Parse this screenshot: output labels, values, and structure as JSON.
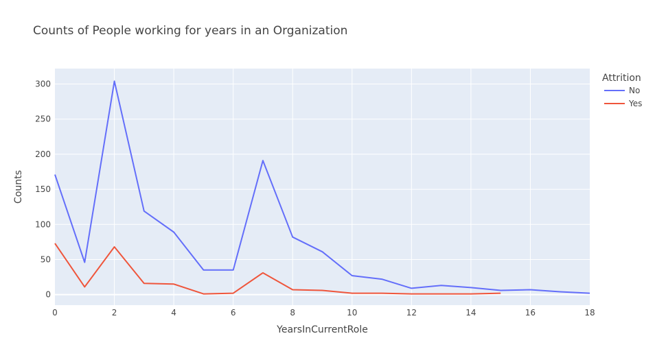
{
  "chart_data": {
    "type": "line",
    "title": "Counts of People working for years in an Organization",
    "xlabel": "YearsInCurrentRole",
    "ylabel": "Counts",
    "xlim": [
      0,
      18
    ],
    "ylim": [
      -15,
      322
    ],
    "xticks": [
      0,
      2,
      4,
      6,
      8,
      10,
      12,
      14,
      16,
      18
    ],
    "yticks": [
      0,
      50,
      100,
      150,
      200,
      250,
      300
    ],
    "grid": true,
    "legend": {
      "title": "Attrition",
      "placement": "top-right"
    },
    "series": [
      {
        "name": "No",
        "color": "#636efa",
        "x": [
          0,
          1,
          2,
          3,
          4,
          5,
          6,
          7,
          8,
          9,
          10,
          11,
          12,
          13,
          14,
          15,
          16,
          17,
          18
        ],
        "y": [
          171,
          46,
          304,
          119,
          89,
          35,
          35,
          191,
          82,
          61,
          27,
          22,
          9,
          13,
          10,
          6,
          7,
          4,
          2
        ]
      },
      {
        "name": "Yes",
        "color": "#ef553b",
        "x": [
          0,
          1,
          2,
          3,
          4,
          5,
          6,
          7,
          8,
          9,
          10,
          11,
          12,
          13,
          14,
          15
        ],
        "y": [
          73,
          11,
          68,
          16,
          15,
          1,
          2,
          31,
          7,
          6,
          2,
          2,
          1,
          1,
          1,
          2
        ]
      }
    ]
  }
}
